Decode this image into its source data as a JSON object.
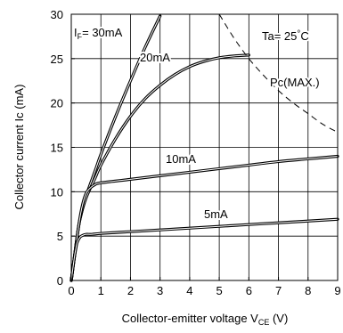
{
  "chart_data": {
    "type": "line",
    "xlabel": "Collector-emitter voltage V",
    "xlabel_sub": "CE",
    "xlabel_unit": " (V)",
    "ylabel": "Collector current Ic (mA)",
    "xlim": [
      0,
      9
    ],
    "ylim": [
      0,
      30
    ],
    "x_ticks": [
      0,
      1,
      2,
      3,
      4,
      5,
      6,
      7,
      8,
      9
    ],
    "y_ticks": [
      0,
      5,
      10,
      15,
      20,
      25,
      30
    ],
    "grid": true,
    "annotations": {
      "condition_prefix": "Ta= 25",
      "condition_degree": "°",
      "condition_unit": "C",
      "if_prefix": "I",
      "if_sub": "F",
      "if_value": "= 30mA",
      "label_20": "20mA",
      "label_10": "10mA",
      "label_5": "5mA",
      "pc_label": "Pc(MAX.)"
    },
    "series": [
      {
        "name": "30mA",
        "x": [
          0,
          0.1,
          0.2,
          0.3,
          0.5,
          0.8,
          1.0,
          1.5,
          2.0,
          2.5,
          3.0
        ],
        "y": [
          0,
          2.5,
          5.0,
          7.0,
          9.5,
          12.3,
          14.2,
          18.5,
          22.5,
          26.3,
          29.8
        ]
      },
      {
        "name": "20mA",
        "x": [
          0,
          0.1,
          0.2,
          0.3,
          0.5,
          0.8,
          1.0,
          1.5,
          2.0,
          2.5,
          3.0,
          3.5,
          4.0,
          4.5,
          5.0,
          5.5,
          6.0
        ],
        "y": [
          0,
          2.5,
          5.0,
          7.0,
          9.3,
          11.5,
          13.0,
          16.0,
          18.5,
          20.5,
          22.0,
          23.2,
          24.1,
          24.7,
          25.1,
          25.3,
          25.4
        ]
      },
      {
        "name": "10mA",
        "x": [
          0,
          0.1,
          0.2,
          0.3,
          0.4,
          0.5,
          0.6,
          0.8,
          1.0,
          2.0,
          3.0,
          4.0,
          5.0,
          6.0,
          7.0,
          8.0,
          9.0
        ],
        "y": [
          0,
          2.5,
          5.0,
          7.2,
          8.8,
          9.8,
          10.3,
          10.8,
          11.0,
          11.4,
          11.8,
          12.2,
          12.6,
          13.0,
          13.4,
          13.7,
          14.0
        ]
      },
      {
        "name": "5mA",
        "x": [
          0,
          0.1,
          0.15,
          0.2,
          0.3,
          0.4,
          0.5,
          0.7,
          1.0,
          2.0,
          3.0,
          4.0,
          5.0,
          6.0,
          7.0,
          8.0,
          9.0
        ],
        "y": [
          0,
          2.5,
          3.5,
          4.3,
          4.9,
          5.1,
          5.2,
          5.2,
          5.3,
          5.5,
          5.7,
          5.9,
          6.1,
          6.3,
          6.5,
          6.7,
          6.9
        ]
      },
      {
        "name": "Pc(MAX.)",
        "x": [
          5.0,
          5.5,
          6.0,
          6.5,
          7.0,
          7.5,
          8.0,
          8.5,
          9.0
        ],
        "y": [
          30.0,
          27.3,
          25.0,
          23.1,
          21.4,
          20.0,
          18.8,
          17.6,
          16.7
        ]
      }
    ]
  }
}
